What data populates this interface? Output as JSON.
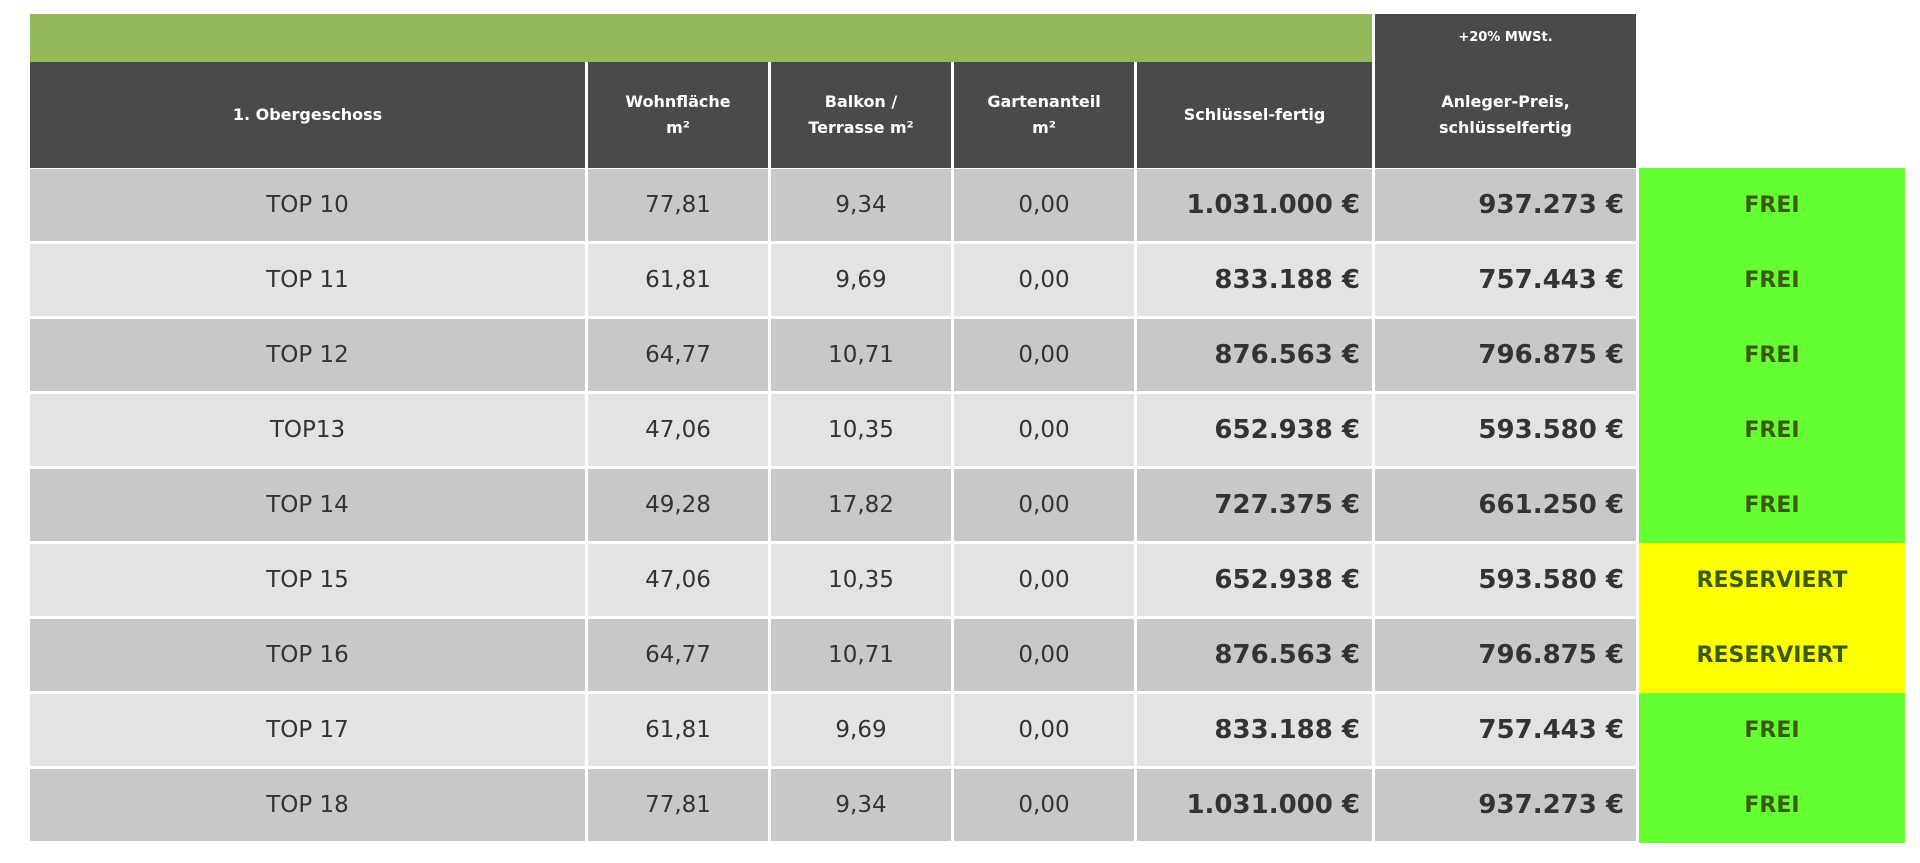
{
  "table": {
    "note": "+20% MWSt.",
    "header": [
      [
        "1. Obergeschoss"
      ],
      [
        "Wohnfläche",
        "m²"
      ],
      [
        "Balkon /",
        "Terrasse m²"
      ],
      [
        "Gartenanteil",
        "m²"
      ],
      [
        "Schlüssel-fertig"
      ],
      [
        "Anleger-Preis,",
        "schlüsselfertig"
      ]
    ],
    "rows": [
      {
        "cells": [
          "TOP 10",
          "77,81",
          "9,34",
          "0,00",
          "1.031.000 €",
          "937.273 €",
          "FREI"
        ],
        "status_color": "#66ff33"
      },
      {
        "cells": [
          "TOP 11",
          "61,81",
          "9,69",
          "0,00",
          "833.188 €",
          "757.443 €",
          "FREI"
        ],
        "status_color": "#66ff33"
      },
      {
        "cells": [
          "TOP 12",
          "64,77",
          "10,71",
          "0,00",
          "876.563 €",
          "796.875 €",
          "FREI"
        ],
        "status_color": "#66ff33"
      },
      {
        "cells": [
          "TOP13",
          "47,06",
          "10,35",
          "0,00",
          "652.938 €",
          "593.580 €",
          "FREI"
        ],
        "status_color": "#66ff33"
      },
      {
        "cells": [
          "TOP 14",
          "49,28",
          "17,82",
          "0,00",
          "727.375 €",
          "661.250 €",
          "FREI"
        ],
        "status_color": "#66ff33"
      },
      {
        "cells": [
          "TOP 15",
          "47,06",
          "10,35",
          "0,00",
          "652.938 €",
          "593.580 €",
          "RESERVIERT"
        ],
        "status_color": "#ffff00"
      },
      {
        "cells": [
          "TOP 16",
          "64,77",
          "10,71",
          "0,00",
          "876.563 €",
          "796.875 €",
          "RESERVIERT"
        ],
        "status_color": "#ffff00"
      },
      {
        "cells": [
          "TOP 17",
          "61,81",
          "9,69",
          "0,00",
          "833.188 €",
          "757.443 €",
          "FREI"
        ],
        "status_color": "#66ff33"
      },
      {
        "cells": [
          "TOP 18",
          "77,81",
          "9,34",
          "0,00",
          "1.031.000 €",
          "937.273 €",
          "FREI"
        ],
        "status_color": "#66ff33"
      }
    ]
  }
}
